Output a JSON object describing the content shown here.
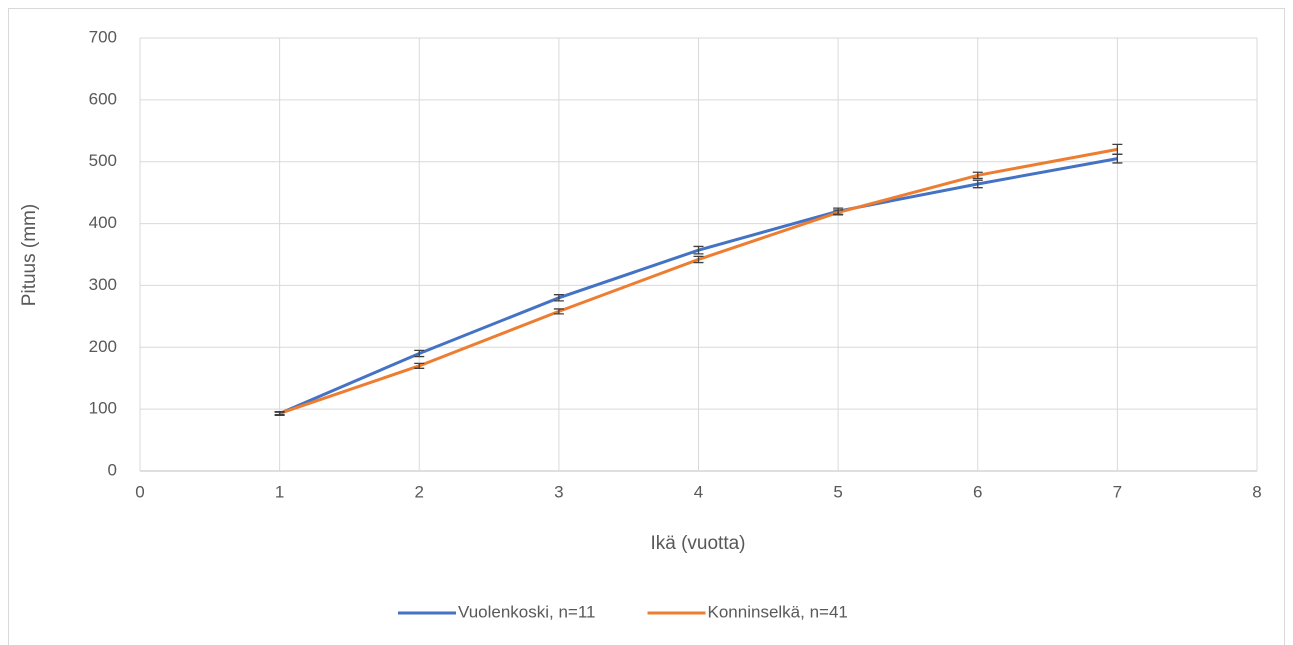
{
  "chart_data": {
    "type": "line",
    "xlabel": "Ikä (vuotta)",
    "ylabel": "Pituus (mm)",
    "x": [
      1,
      2,
      3,
      4,
      5,
      6,
      7
    ],
    "series": [
      {
        "name": "Vuolenkoski, n=11",
        "color": "#4472c4",
        "values": [
          93,
          190,
          280,
          357,
          420,
          464,
          505
        ],
        "errors": [
          3,
          5,
          5,
          6,
          5,
          6,
          7
        ]
      },
      {
        "name": "Konninselkä, n=41",
        "color": "#ed7d31",
        "values": [
          93,
          170,
          258,
          342,
          418,
          478,
          520
        ],
        "errors": [
          2,
          4,
          4,
          5,
          4,
          5,
          8
        ]
      }
    ],
    "xlim": [
      0,
      8
    ],
    "xticks": [
      0,
      1,
      2,
      3,
      4,
      5,
      6,
      7,
      8
    ],
    "ylim": [
      0,
      700
    ],
    "yticks": [
      0,
      100,
      200,
      300,
      400,
      500,
      600,
      700
    ],
    "grid": true,
    "legend": "bottom"
  }
}
